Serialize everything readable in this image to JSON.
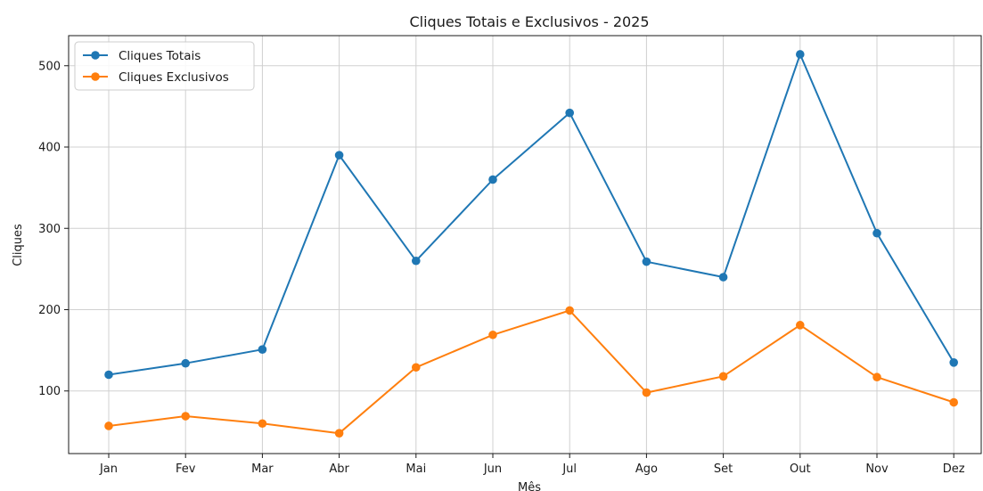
{
  "chart_data": {
    "type": "line",
    "title": "Cliques Totais e Exclusivos - 2025",
    "xlabel": "Mês",
    "ylabel": "Cliques",
    "categories": [
      "Jan",
      "Fev",
      "Mar",
      "Abr",
      "Mai",
      "Jun",
      "Jul",
      "Ago",
      "Set",
      "Out",
      "Nov",
      "Dez"
    ],
    "ylim": [
      23,
      537
    ],
    "yticks": [
      100,
      200,
      300,
      400,
      500
    ],
    "grid": true,
    "legend_position": "top-left",
    "series": [
      {
        "name": "Cliques Totais",
        "color": "#1f77b4",
        "marker": "circle",
        "values": [
          120,
          134,
          151,
          390,
          260,
          360,
          442,
          259,
          240,
          514,
          294,
          135
        ]
      },
      {
        "name": "Cliques Exclusivos",
        "color": "#ff7f0e",
        "marker": "circle",
        "values": [
          57,
          69,
          60,
          48,
          129,
          169,
          199,
          98,
          118,
          181,
          117,
          86
        ]
      }
    ]
  }
}
